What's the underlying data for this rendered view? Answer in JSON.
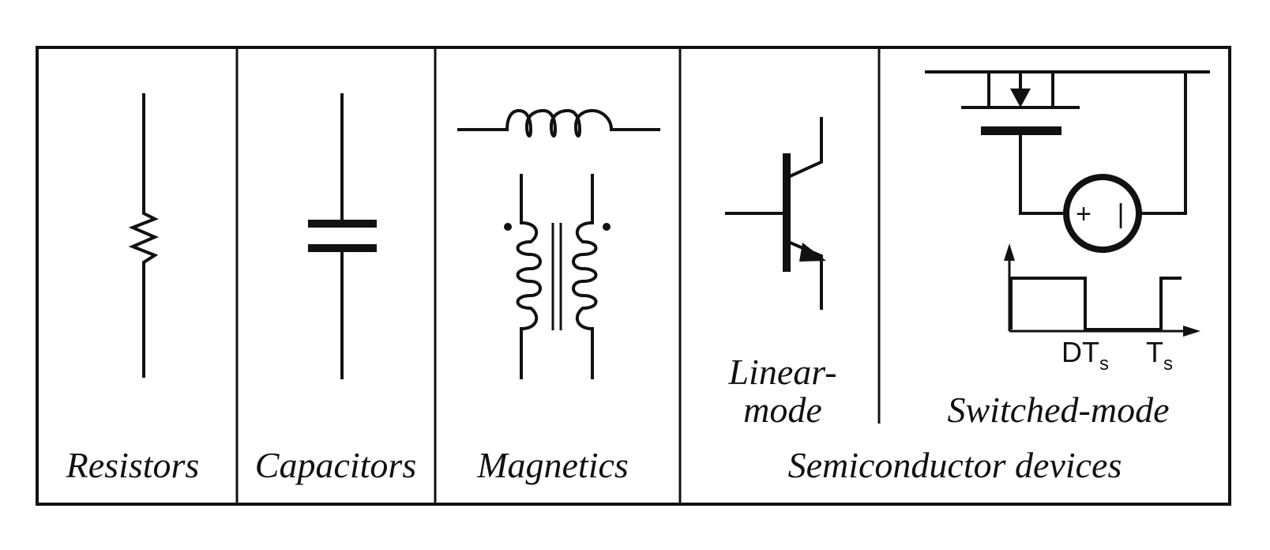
{
  "panels": {
    "resistors": {
      "label": "Resistors"
    },
    "capacitors": {
      "label": "Capacitors"
    },
    "magnetics": {
      "label": "Magnetics"
    },
    "semiconductors": {
      "label": "Semiconductor devices",
      "linear_mode": {
        "label_line1": "Linear-",
        "label_line2": "mode"
      },
      "switched_mode": {
        "label": "Switched-mode",
        "source_plus": "+",
        "source_minus": "|",
        "waveform": {
          "duty_tick": "DT",
          "duty_tick_sub": "s",
          "period_tick": "T",
          "period_tick_sub": "s"
        }
      }
    }
  }
}
